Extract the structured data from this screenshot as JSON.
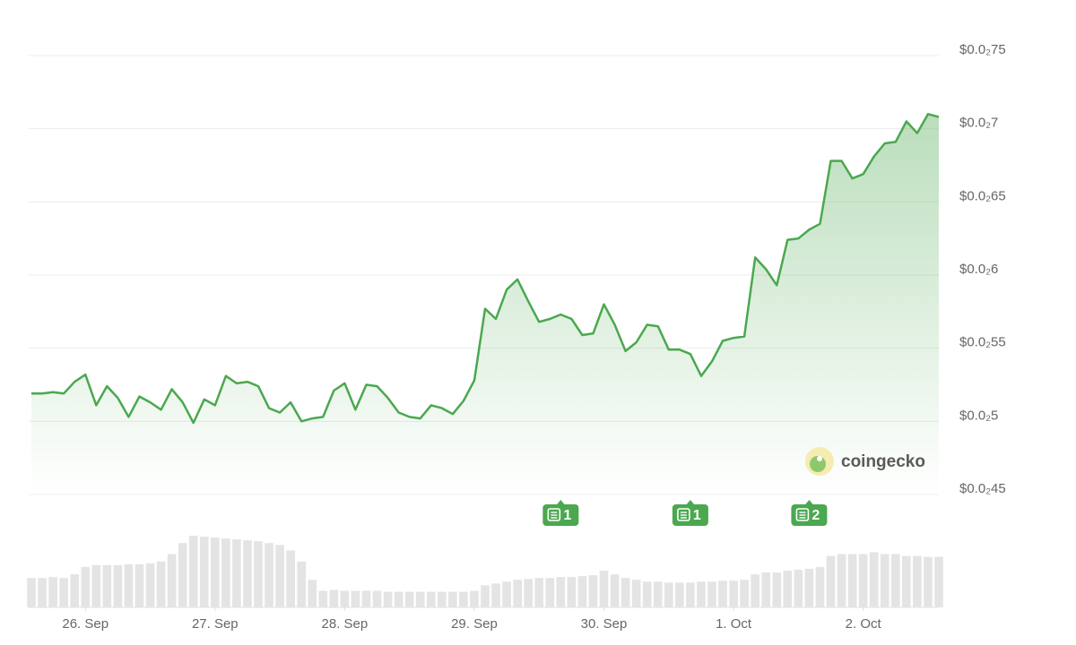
{
  "chart_data": {
    "type": "line",
    "color": "#4ba84f",
    "values": [
      0.00519,
      0.00519,
      0.0052,
      0.00519,
      0.00527,
      0.00532,
      0.00511,
      0.00524,
      0.00516,
      0.00503,
      0.00517,
      0.00513,
      0.00508,
      0.00522,
      0.00513,
      0.00499,
      0.00515,
      0.00511,
      0.00531,
      0.00526,
      0.00527,
      0.00524,
      0.00509,
      0.00506,
      0.00513,
      0.005,
      0.00502,
      0.00503,
      0.00521,
      0.00526,
      0.00508,
      0.00525,
      0.00524,
      0.00516,
      0.00506,
      0.00503,
      0.00502,
      0.00511,
      0.00509,
      0.00505,
      0.00514,
      0.00528,
      0.00577,
      0.0057,
      0.0059,
      0.00597,
      0.00582,
      0.00568,
      0.0057,
      0.00573,
      0.0057,
      0.00559,
      0.0056,
      0.0058,
      0.00566,
      0.00548,
      0.00554,
      0.00566,
      0.00565,
      0.00549,
      0.00549,
      0.00546,
      0.00531,
      0.00541,
      0.00555,
      0.00557,
      0.00558,
      0.00612,
      0.00604,
      0.00593,
      0.00624,
      0.00625,
      0.00631,
      0.00635,
      0.00678,
      0.00678,
      0.00666,
      0.00669,
      0.00681,
      0.0069,
      0.00691,
      0.00705,
      0.00697,
      0.0071,
      0.00708
    ],
    "volume": [
      32,
      32,
      33,
      32,
      36,
      44,
      46,
      46,
      46,
      47,
      47,
      48,
      50,
      58,
      70,
      78,
      77,
      76,
      75,
      74,
      73,
      72,
      70,
      68,
      62,
      50,
      30,
      18,
      19,
      18,
      18,
      18,
      18,
      17,
      17,
      17,
      17,
      17,
      17,
      17,
      17,
      18,
      24,
      26,
      28,
      30,
      31,
      32,
      32,
      33,
      33,
      34,
      35,
      40,
      36,
      32,
      30,
      28,
      28,
      27,
      27,
      27,
      28,
      28,
      29,
      29,
      30,
      36,
      38,
      38,
      40,
      41,
      42,
      44,
      56,
      58,
      58,
      58,
      60,
      58,
      58,
      56,
      56,
      55,
      55
    ],
    "volume_color": "#e4e4e4",
    "ylim": [
      0.0045,
      0.0075
    ],
    "yticks": [
      {
        "value": 0.0045,
        "label": "$0.0₂45"
      },
      {
        "value": 0.005,
        "label": "$0.0₂5"
      },
      {
        "value": 0.0055,
        "label": "$0.0₂55"
      },
      {
        "value": 0.006,
        "label": "$0.0₂6"
      },
      {
        "value": 0.0065,
        "label": "$0.0₂65"
      },
      {
        "value": 0.007,
        "label": "$0.0₂7"
      },
      {
        "value": 0.0075,
        "label": "$0.0₂75"
      }
    ],
    "xlim": [
      0,
      84
    ],
    "xticks": [
      {
        "value": 5,
        "label": "26. Sep"
      },
      {
        "value": 17,
        "label": "27. Sep"
      },
      {
        "value": 29,
        "label": "28. Sep"
      },
      {
        "value": 41,
        "label": "29. Sep"
      },
      {
        "value": 53,
        "label": "30. Sep"
      },
      {
        "value": 65,
        "label": "1. Oct"
      },
      {
        "value": 77,
        "label": "2. Oct"
      }
    ],
    "grid": true,
    "news": [
      {
        "x": 49,
        "count": 1
      },
      {
        "x": 61,
        "count": 1
      },
      {
        "x": 72,
        "count": 2
      }
    ],
    "watermark": "coingecko"
  }
}
